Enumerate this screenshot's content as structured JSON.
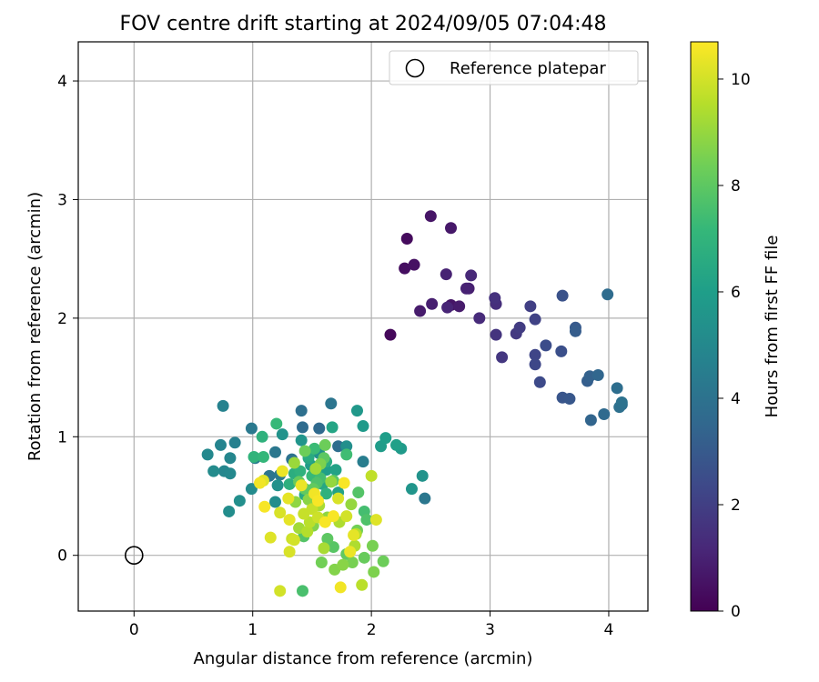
{
  "chart_data": {
    "type": "scatter",
    "title": "FOV centre drift starting at 2024/09/05 07:04:48",
    "xlabel": "Angular distance from reference (arcmin)",
    "ylabel": "Rotation from reference (arcmin)",
    "xlim": [
      -0.47,
      4.33
    ],
    "ylim": [
      -0.47,
      4.33
    ],
    "xticks": [
      0,
      1,
      2,
      3,
      4
    ],
    "yticks": [
      0,
      1,
      2,
      3,
      4
    ],
    "grid": true,
    "legend": {
      "position": "top-right",
      "entries": [
        {
          "label": "Reference platepar",
          "marker": "open-circle"
        }
      ]
    },
    "reference_point": {
      "x": 0,
      "y": 0
    },
    "colorbar": {
      "label": "Hours from first FF file",
      "colormap": "viridis",
      "range": [
        0,
        10.7
      ],
      "ticks": [
        0,
        2,
        4,
        6,
        8,
        10
      ]
    },
    "points": [
      {
        "x": 2.16,
        "y": 1.86,
        "c": 0.2
      },
      {
        "x": 2.3,
        "y": 2.67,
        "c": 0.3
      },
      {
        "x": 2.28,
        "y": 2.42,
        "c": 0.4
      },
      {
        "x": 2.36,
        "y": 2.45,
        "c": 0.5
      },
      {
        "x": 2.5,
        "y": 2.86,
        "c": 0.6
      },
      {
        "x": 2.67,
        "y": 2.76,
        "c": 0.7
      },
      {
        "x": 2.41,
        "y": 2.06,
        "c": 0.8
      },
      {
        "x": 2.51,
        "y": 2.12,
        "c": 0.9
      },
      {
        "x": 2.63,
        "y": 2.37,
        "c": 1.0
      },
      {
        "x": 2.64,
        "y": 2.09,
        "c": 1.1
      },
      {
        "x": 2.67,
        "y": 2.11,
        "c": 0.6
      },
      {
        "x": 2.74,
        "y": 2.1,
        "c": 0.8
      },
      {
        "x": 2.8,
        "y": 2.25,
        "c": 1.0
      },
      {
        "x": 2.84,
        "y": 2.36,
        "c": 1.2
      },
      {
        "x": 2.82,
        "y": 2.25,
        "c": 0.9
      },
      {
        "x": 2.91,
        "y": 2.0,
        "c": 1.3
      },
      {
        "x": 3.04,
        "y": 2.17,
        "c": 1.5
      },
      {
        "x": 3.05,
        "y": 2.12,
        "c": 1.4
      },
      {
        "x": 3.05,
        "y": 1.86,
        "c": 1.6
      },
      {
        "x": 3.1,
        "y": 1.67,
        "c": 1.7
      },
      {
        "x": 3.22,
        "y": 1.87,
        "c": 1.8
      },
      {
        "x": 3.25,
        "y": 1.92,
        "c": 1.9
      },
      {
        "x": 3.34,
        "y": 2.1,
        "c": 2.0
      },
      {
        "x": 3.38,
        "y": 1.99,
        "c": 2.1
      },
      {
        "x": 3.38,
        "y": 1.69,
        "c": 2.2
      },
      {
        "x": 3.38,
        "y": 1.61,
        "c": 2.3
      },
      {
        "x": 3.42,
        "y": 1.46,
        "c": 2.4
      },
      {
        "x": 3.47,
        "y": 1.77,
        "c": 2.5
      },
      {
        "x": 3.6,
        "y": 1.72,
        "c": 2.6
      },
      {
        "x": 3.61,
        "y": 2.19,
        "c": 2.7
      },
      {
        "x": 3.61,
        "y": 1.33,
        "c": 2.8
      },
      {
        "x": 3.67,
        "y": 1.32,
        "c": 2.9
      },
      {
        "x": 3.72,
        "y": 1.92,
        "c": 3.0
      },
      {
        "x": 3.72,
        "y": 1.89,
        "c": 3.1
      },
      {
        "x": 3.82,
        "y": 1.47,
        "c": 3.2
      },
      {
        "x": 3.84,
        "y": 1.51,
        "c": 3.3
      },
      {
        "x": 3.85,
        "y": 1.14,
        "c": 3.4
      },
      {
        "x": 3.91,
        "y": 1.52,
        "c": 3.5
      },
      {
        "x": 3.96,
        "y": 1.19,
        "c": 3.6
      },
      {
        "x": 3.99,
        "y": 2.2,
        "c": 3.7
      },
      {
        "x": 4.07,
        "y": 1.41,
        "c": 3.8
      },
      {
        "x": 4.09,
        "y": 1.25,
        "c": 3.9
      },
      {
        "x": 4.11,
        "y": 1.29,
        "c": 4.0
      },
      {
        "x": 4.11,
        "y": 1.27,
        "c": 3.8
      },
      {
        "x": 1.41,
        "y": 1.22,
        "c": 3.9
      },
      {
        "x": 1.42,
        "y": 1.08,
        "c": 3.7
      },
      {
        "x": 1.56,
        "y": 1.07,
        "c": 3.6
      },
      {
        "x": 1.66,
        "y": 1.28,
        "c": 4.1
      },
      {
        "x": 1.72,
        "y": 0.92,
        "c": 3.8
      },
      {
        "x": 1.19,
        "y": 0.87,
        "c": 4.2
      },
      {
        "x": 0.99,
        "y": 1.07,
        "c": 4.3
      },
      {
        "x": 1.33,
        "y": 0.81,
        "c": 4.0
      },
      {
        "x": 1.02,
        "y": 0.82,
        "c": 4.4
      },
      {
        "x": 1.14,
        "y": 0.67,
        "c": 4.1
      },
      {
        "x": 1.23,
        "y": 0.68,
        "c": 4.3
      },
      {
        "x": 2.45,
        "y": 0.48,
        "c": 4.2
      },
      {
        "x": 1.93,
        "y": 0.79,
        "c": 4.5
      },
      {
        "x": 0.75,
        "y": 1.26,
        "c": 4.7
      },
      {
        "x": 0.85,
        "y": 0.95,
        "c": 4.6
      },
      {
        "x": 0.73,
        "y": 0.93,
        "c": 4.8
      },
      {
        "x": 0.81,
        "y": 0.82,
        "c": 4.9
      },
      {
        "x": 0.62,
        "y": 0.85,
        "c": 5.0
      },
      {
        "x": 0.67,
        "y": 0.71,
        "c": 5.1
      },
      {
        "x": 0.76,
        "y": 0.71,
        "c": 4.9
      },
      {
        "x": 0.81,
        "y": 0.69,
        "c": 5.0
      },
      {
        "x": 0.8,
        "y": 0.37,
        "c": 5.2
      },
      {
        "x": 0.89,
        "y": 0.46,
        "c": 5.3
      },
      {
        "x": 0.99,
        "y": 0.56,
        "c": 5.1
      },
      {
        "x": 1.21,
        "y": 0.59,
        "c": 5.4
      },
      {
        "x": 1.19,
        "y": 0.45,
        "c": 5.2
      },
      {
        "x": 1.25,
        "y": 1.02,
        "c": 5.5
      },
      {
        "x": 1.41,
        "y": 0.97,
        "c": 5.6
      },
      {
        "x": 1.56,
        "y": 0.86,
        "c": 5.4
      },
      {
        "x": 1.79,
        "y": 0.92,
        "c": 5.3
      },
      {
        "x": 1.88,
        "y": 1.22,
        "c": 5.7
      },
      {
        "x": 1.93,
        "y": 1.09,
        "c": 5.8
      },
      {
        "x": 2.08,
        "y": 0.92,
        "c": 5.9
      },
      {
        "x": 2.12,
        "y": 0.99,
        "c": 6.0
      },
      {
        "x": 2.21,
        "y": 0.93,
        "c": 6.1
      },
      {
        "x": 2.25,
        "y": 0.9,
        "c": 5.8
      },
      {
        "x": 2.34,
        "y": 0.56,
        "c": 5.6
      },
      {
        "x": 2.43,
        "y": 0.67,
        "c": 5.5
      },
      {
        "x": 1.49,
        "y": 0.76,
        "c": 5.9
      },
      {
        "x": 1.62,
        "y": 0.72,
        "c": 6.0
      },
      {
        "x": 1.72,
        "y": 0.53,
        "c": 6.2
      },
      {
        "x": 1.67,
        "y": 1.08,
        "c": 6.3
      },
      {
        "x": 1.59,
        "y": 0.6,
        "c": 6.4
      },
      {
        "x": 1.44,
        "y": 0.51,
        "c": 6.5
      },
      {
        "x": 1.47,
        "y": 0.84,
        "c": 6.6
      },
      {
        "x": 1.35,
        "y": 0.69,
        "c": 6.7
      },
      {
        "x": 1.31,
        "y": 0.6,
        "c": 6.8
      },
      {
        "x": 1.08,
        "y": 1.0,
        "c": 6.9
      },
      {
        "x": 1.01,
        "y": 0.83,
        "c": 7.0
      },
      {
        "x": 1.09,
        "y": 0.83,
        "c": 7.1
      },
      {
        "x": 1.2,
        "y": 1.11,
        "c": 7.2
      },
      {
        "x": 1.52,
        "y": 0.9,
        "c": 7.3
      },
      {
        "x": 1.79,
        "y": 0.85,
        "c": 7.4
      },
      {
        "x": 1.94,
        "y": 0.37,
        "c": 7.5
      },
      {
        "x": 1.42,
        "y": -0.3,
        "c": 7.6
      },
      {
        "x": 1.96,
        "y": 0.3,
        "c": 7.7
      },
      {
        "x": 1.89,
        "y": 0.53,
        "c": 7.8
      },
      {
        "x": 1.68,
        "y": 0.63,
        "c": 7.9
      },
      {
        "x": 1.6,
        "y": 0.82,
        "c": 8.0
      },
      {
        "x": 1.51,
        "y": 0.56,
        "c": 8.1
      },
      {
        "x": 1.39,
        "y": 0.62,
        "c": 8.2
      },
      {
        "x": 1.61,
        "y": 0.93,
        "c": 8.3
      },
      {
        "x": 1.63,
        "y": 0.14,
        "c": 8.0
      },
      {
        "x": 1.68,
        "y": 0.07,
        "c": 7.9
      },
      {
        "x": 1.79,
        "y": 0.01,
        "c": 8.1
      },
      {
        "x": 1.88,
        "y": 0.21,
        "c": 8.4
      },
      {
        "x": 1.94,
        "y": -0.02,
        "c": 8.2
      },
      {
        "x": 2.01,
        "y": 0.08,
        "c": 8.5
      },
      {
        "x": 2.1,
        "y": -0.05,
        "c": 8.3
      },
      {
        "x": 2.02,
        "y": -0.14,
        "c": 8.6
      },
      {
        "x": 1.58,
        "y": -0.06,
        "c": 8.4
      },
      {
        "x": 1.69,
        "y": -0.12,
        "c": 8.7
      },
      {
        "x": 1.84,
        "y": -0.06,
        "c": 8.5
      },
      {
        "x": 1.76,
        "y": -0.08,
        "c": 8.8
      },
      {
        "x": 1.63,
        "y": 0.32,
        "c": 8.9
      },
      {
        "x": 1.83,
        "y": 0.43,
        "c": 9.0
      },
      {
        "x": 1.47,
        "y": 0.47,
        "c": 8.8
      },
      {
        "x": 1.35,
        "y": 0.78,
        "c": 9.1
      },
      {
        "x": 1.53,
        "y": 0.73,
        "c": 9.2
      },
      {
        "x": 1.56,
        "y": 0.42,
        "c": 9.3
      },
      {
        "x": 1.73,
        "y": 0.28,
        "c": 9.4
      },
      {
        "x": 1.87,
        "y": 0.18,
        "c": 9.5
      },
      {
        "x": 1.92,
        "y": -0.25,
        "c": 9.6
      },
      {
        "x": 2.0,
        "y": 0.67,
        "c": 9.7
      },
      {
        "x": 1.43,
        "y": 0.35,
        "c": 9.8
      },
      {
        "x": 1.33,
        "y": 0.14,
        "c": 9.9
      },
      {
        "x": 1.23,
        "y": -0.3,
        "c": 10.0
      },
      {
        "x": 1.31,
        "y": 0.03,
        "c": 10.1
      },
      {
        "x": 1.15,
        "y": 0.15,
        "c": 10.2
      },
      {
        "x": 1.3,
        "y": 0.48,
        "c": 10.3
      },
      {
        "x": 1.41,
        "y": 0.59,
        "c": 10.4
      },
      {
        "x": 1.52,
        "y": 0.52,
        "c": 10.5
      },
      {
        "x": 1.61,
        "y": 0.28,
        "c": 10.6
      },
      {
        "x": 1.74,
        "y": -0.27,
        "c": 10.5
      },
      {
        "x": 1.82,
        "y": 0.03,
        "c": 10.4
      },
      {
        "x": 1.85,
        "y": 0.17,
        "c": 10.3
      },
      {
        "x": 2.04,
        "y": 0.3,
        "c": 10.2
      },
      {
        "x": 1.72,
        "y": 0.48,
        "c": 10.1
      },
      {
        "x": 1.79,
        "y": 0.33,
        "c": 10.0
      },
      {
        "x": 1.55,
        "y": 0.32,
        "c": 9.9
      },
      {
        "x": 1.5,
        "y": 0.39,
        "c": 9.8
      },
      {
        "x": 1.31,
        "y": 0.3,
        "c": 10.3
      },
      {
        "x": 1.25,
        "y": 0.71,
        "c": 10.4
      },
      {
        "x": 1.09,
        "y": 0.63,
        "c": 10.2
      },
      {
        "x": 1.06,
        "y": 0.61,
        "c": 10.5
      },
      {
        "x": 1.1,
        "y": 0.41,
        "c": 10.6
      },
      {
        "x": 1.23,
        "y": 0.36,
        "c": 10.1
      },
      {
        "x": 1.35,
        "y": 0.13,
        "c": 10.0
      },
      {
        "x": 1.46,
        "y": 0.2,
        "c": 9.5
      },
      {
        "x": 1.6,
        "y": 0.06,
        "c": 9.3
      },
      {
        "x": 1.66,
        "y": 0.62,
        "c": 9.0
      },
      {
        "x": 1.36,
        "y": 0.45,
        "c": 8.9
      },
      {
        "x": 1.5,
        "y": 0.67,
        "c": 7.2
      },
      {
        "x": 1.53,
        "y": 0.71,
        "c": 7.0
      },
      {
        "x": 1.62,
        "y": 0.79,
        "c": 6.6
      },
      {
        "x": 1.47,
        "y": 0.82,
        "c": 6.4
      },
      {
        "x": 1.4,
        "y": 0.71,
        "c": 6.9
      },
      {
        "x": 1.57,
        "y": 0.65,
        "c": 7.5
      },
      {
        "x": 1.7,
        "y": 0.72,
        "c": 6.2
      },
      {
        "x": 1.57,
        "y": 0.77,
        "c": 8.6
      },
      {
        "x": 1.44,
        "y": 0.56,
        "c": 8.1
      },
      {
        "x": 1.54,
        "y": 0.61,
        "c": 7.7
      },
      {
        "x": 1.48,
        "y": 0.28,
        "c": 9.6
      },
      {
        "x": 1.39,
        "y": 0.23,
        "c": 9.2
      },
      {
        "x": 1.43,
        "y": 0.16,
        "c": 7.8
      },
      {
        "x": 1.77,
        "y": 0.61,
        "c": 10.6
      },
      {
        "x": 1.68,
        "y": 0.33,
        "c": 10.6
      },
      {
        "x": 1.55,
        "y": 0.46,
        "c": 10.6
      },
      {
        "x": 1.44,
        "y": 0.88,
        "c": 8.3
      },
      {
        "x": 1.62,
        "y": 0.52,
        "c": 6.9
      },
      {
        "x": 1.51,
        "y": 0.25,
        "c": 8.7
      },
      {
        "x": 1.86,
        "y": 0.08,
        "c": 9.4
      }
    ]
  }
}
